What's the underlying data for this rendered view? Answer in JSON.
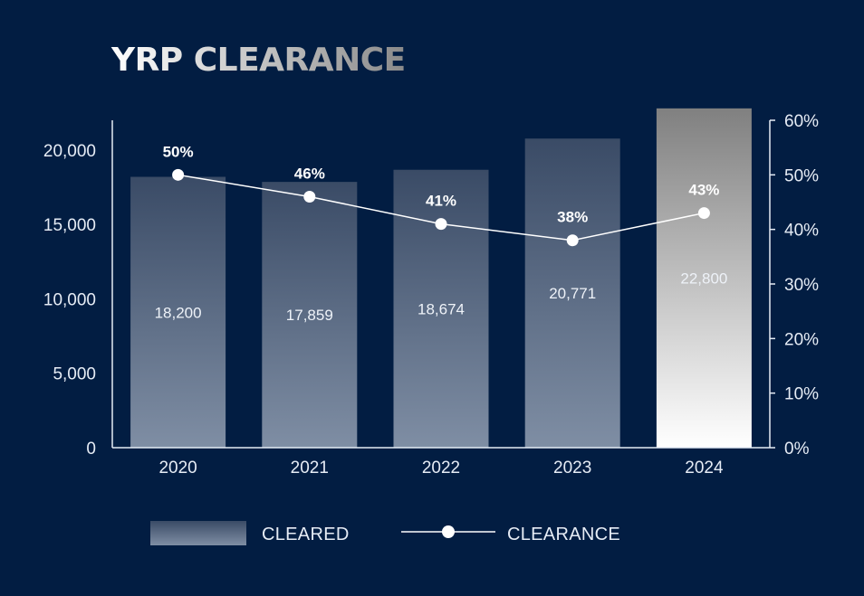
{
  "colors": {
    "background": "#021d42",
    "axis": "#e6ecf5",
    "bar_top": "#3a4b66",
    "bar_bottom": "#7f8ea4",
    "highlight_bar_top": "#808080",
    "highlight_bar_bottom": "#ffffff",
    "line": "#ffffff"
  },
  "chart_data": {
    "type": "bar",
    "title": "YRP CLEARANCE",
    "categories": [
      "2020",
      "2021",
      "2022",
      "2023",
      "2024"
    ],
    "series": [
      {
        "name": "CLEARED",
        "type": "bar",
        "axis": "left",
        "values": [
          18200,
          17859,
          18674,
          20771,
          22800
        ],
        "labels": [
          "18,200",
          "17,859",
          "18,674",
          "20,771",
          "22,800"
        ],
        "highlight_index": 4
      },
      {
        "name": "CLEARANCE",
        "type": "line",
        "axis": "right",
        "values": [
          50,
          46,
          41,
          38,
          43
        ],
        "labels": [
          "50%",
          "46%",
          "41%",
          "38%",
          "43%"
        ]
      }
    ],
    "y_left": {
      "ylim": [
        0,
        22000
      ],
      "ticks": [
        0,
        5000,
        10000,
        15000,
        20000
      ],
      "tick_labels": [
        "0",
        "5,000",
        "10,000",
        "15,000",
        "20,000"
      ]
    },
    "y_right": {
      "ylim": [
        0,
        60
      ],
      "ticks": [
        0,
        10,
        20,
        30,
        40,
        50,
        60
      ],
      "tick_labels": [
        "0%",
        "10%",
        "20%",
        "30%",
        "40%",
        "50%",
        "60%"
      ]
    },
    "grid": false,
    "legend_position": "bottom"
  }
}
